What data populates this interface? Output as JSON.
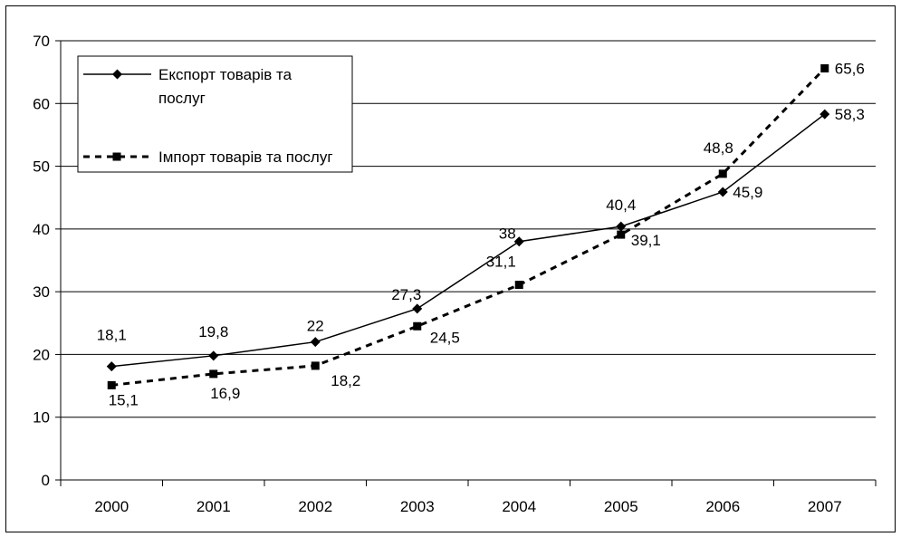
{
  "chart_data": {
    "type": "line",
    "title": "",
    "xlabel": "",
    "ylabel": "",
    "categories": [
      "2000",
      "2001",
      "2002",
      "2003",
      "2004",
      "2005",
      "2006",
      "2007"
    ],
    "ylim": [
      0,
      70
    ],
    "yticks": [
      0,
      10,
      20,
      30,
      40,
      50,
      60,
      70
    ],
    "grid": "horizontal",
    "legend_position": "top-left",
    "series": [
      {
        "name": "Експорт товарів та послуг",
        "values": [
          18.1,
          19.8,
          22,
          27.3,
          38,
          40.4,
          45.9,
          58.3
        ],
        "labels": [
          "18,1",
          "19,8",
          "22",
          "27,3",
          "38",
          "40,4",
          "45,9",
          "58,3"
        ],
        "line_style": "solid",
        "marker": "diamond",
        "color": "#000000"
      },
      {
        "name": "Імпорт товарів та послуг",
        "values": [
          15.1,
          16.9,
          18.2,
          24.5,
          31.1,
          39.1,
          48.8,
          65.6
        ],
        "labels": [
          "15,1",
          "16,9",
          "18,2",
          "24,5",
          "31,1",
          "39,1",
          "48,8",
          "65,6"
        ],
        "line_style": "dashed",
        "marker": "square",
        "color": "#000000"
      }
    ]
  }
}
